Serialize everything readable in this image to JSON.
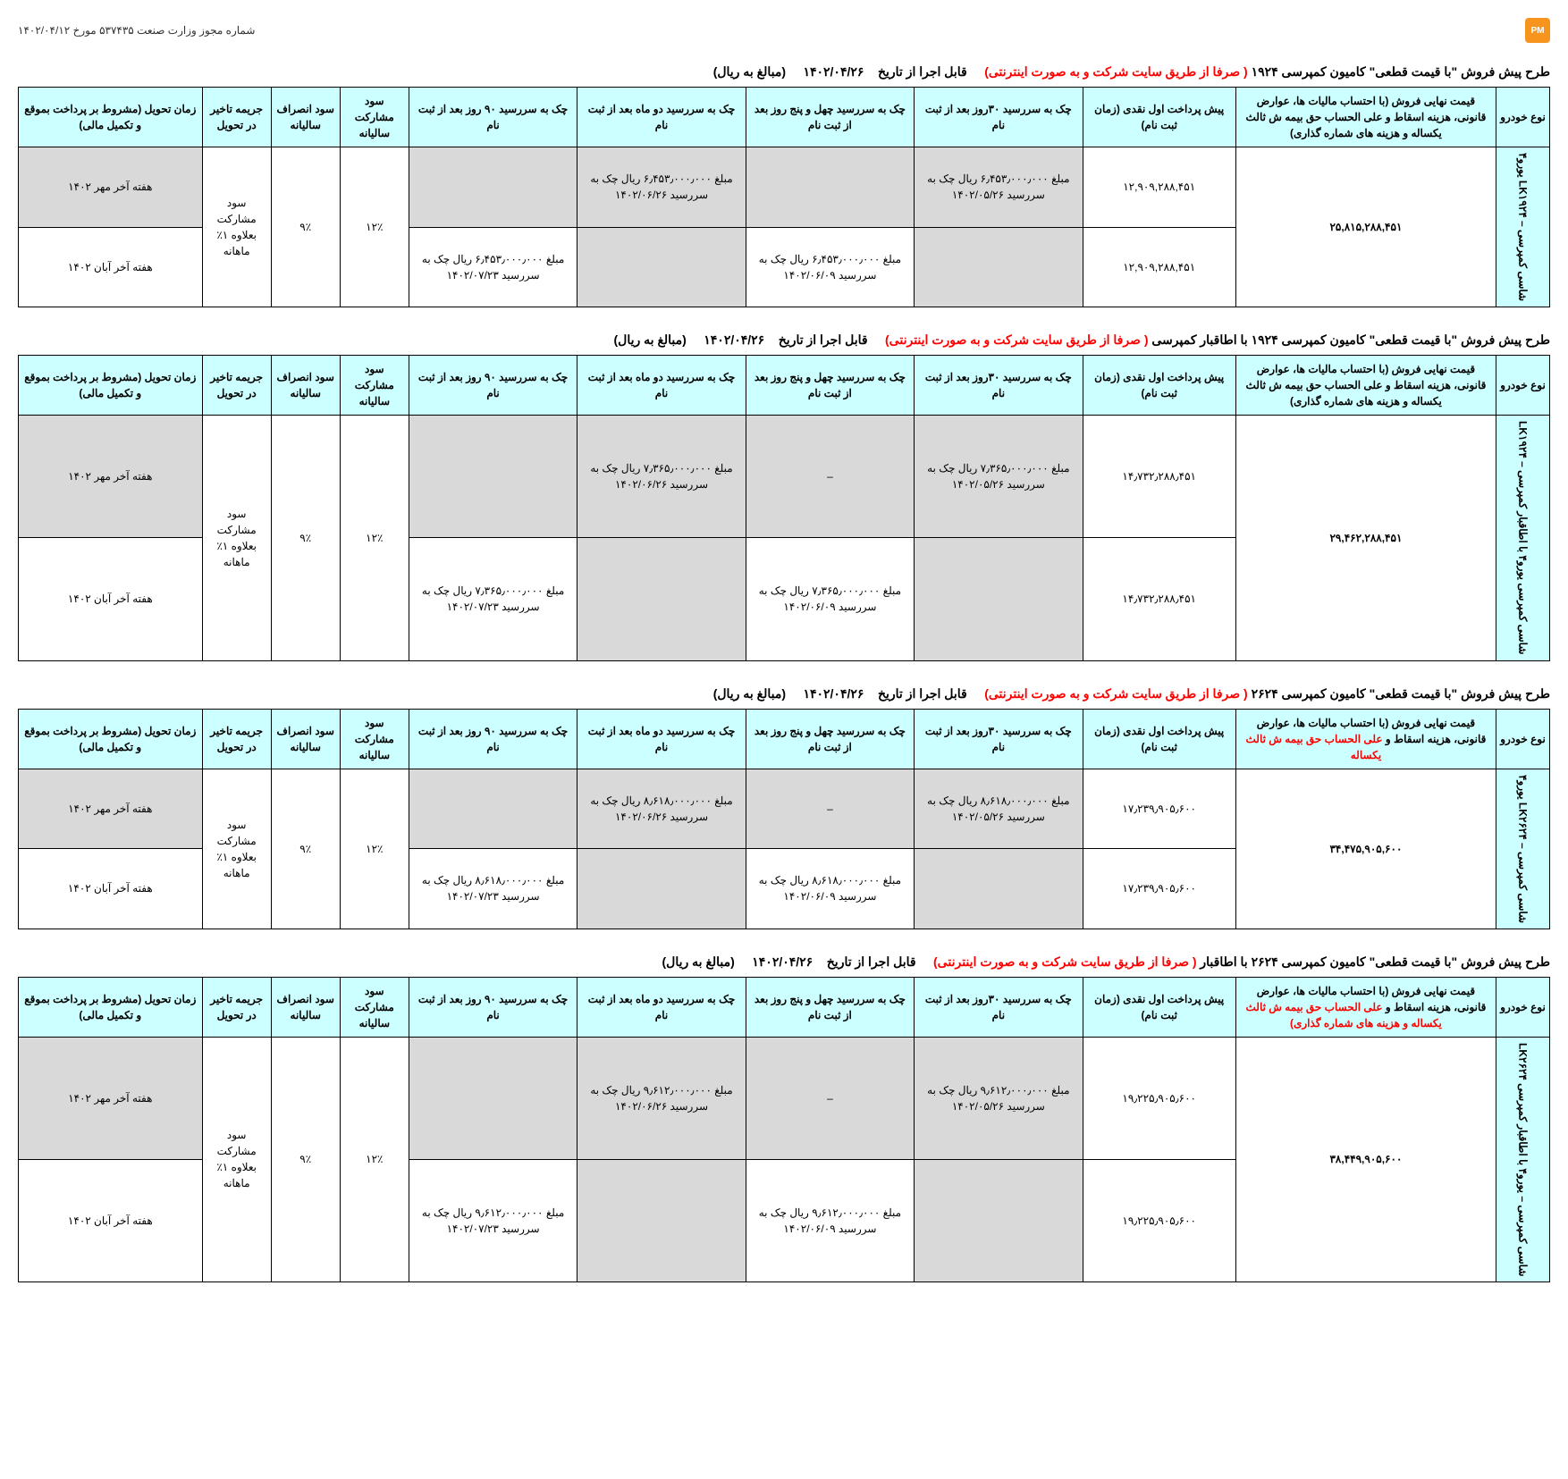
{
  "header": {
    "license": "شماره مجوز وزارت صنعت ۵۳۷۴۳۵ مورخ ۱۴۰۲/۰۴/۱۲",
    "logo": "PM"
  },
  "common": {
    "currency_note": "(مبالغ به ریال)",
    "exec_date_label": "قابل اجرا از تاریخ",
    "exec_date": "۱۴۰۲/۰۴/۲۶",
    "via_site": "( صرفا از طریق سایت شرکت و به صورت اینترنتی)",
    "cols": {
      "vehicle": "نوع خودرو",
      "first_pay": "پیش پرداخت اول نقدی   (زمان ثبت نام)",
      "chk30": "چک به سررسید ۳۰روز بعد از ثبت نام",
      "chk45": "چک به سررسید چهل و پنج روز بعد از ثبت نام",
      "chk60": "چک به سررسید دو ماه بعد از ثبت نام",
      "chk90": "چک به سررسید ۹۰ روز بعد از ثبت نام",
      "annual_part": "سود مشارکت سالیانه",
      "annual_cancel": "سود انصراف سالیانه",
      "delay_penalty": "جریمه تاخیر در تحویل",
      "delivery": "زمان تحویل (مشروط بر پرداخت بموقع و تکمیل مالی)"
    },
    "penalty_text": "سود مشارکت بعلاوه ۱٪ ماهانه",
    "pct12": "۱۲٪",
    "pct9": "۹٪",
    "mehr": "هفته آخر مهر ۱۴۰۲",
    "aban": "هفته آخر آبان ۱۴۰۲",
    "dash": "–"
  },
  "t1": {
    "title_pre": "طرح  پیش فروش \"با قیمت قطعی\"  کامیون کمپرسی ۱۹۲۴",
    "price_label": "قیمت نهایی فروش (با احتساب مالیات ها، عوارض قانونی، هزینه اسقاط و  علی الحساب حق بیمه ش ثالث یکساله و هزینه های شماره گذاری)",
    "vehicle": "شاسی کمپرسی – LK۱۹۲۴ یورو۴",
    "price": "۲۵,۸۱۵,۲۸۸,۴۵۱",
    "first_pay": "۱۲,۹۰۹,۲۸۸,۴۵۱",
    "r1_chk30": "مبلغ ۶٫۴۵۳٫۰۰۰٫۰۰۰ ریال چک به سررسید ۱۴۰۲/۰۵/۲۶",
    "r1_chk60": "مبلغ ۶٫۴۵۳٫۰۰۰٫۰۰۰ ریال چک به سررسید ۱۴۰۲/۰۶/۲۶",
    "r2_chk45": "مبلغ ۶٫۴۵۳٫۰۰۰٫۰۰۰ ریال چک به سررسید ۱۴۰۲/۰۶/۰۹",
    "r2_chk90": "مبلغ ۶٫۴۵۳٫۰۰۰٫۰۰۰ ریال چک به سررسید ۱۴۰۲/۰۷/۲۳"
  },
  "t2": {
    "title_pre": "طرح  پیش فروش \"با قیمت قطعی\"  کامیون کمپرسی ۱۹۲۴ با اطاقبار کمپرسی",
    "price_label": "قیمت نهایی فروش (با احتساب مالیات ها، عوارض قانونی، هزینه اسقاط و  علی الحساب حق بیمه ش ثالث یکساله و هزینه های شماره گذاری)",
    "vehicle": "شاسی کمپرسی یورو۴ با اطاقبار کمپرسی – LK۱۹۲۴",
    "price": "۲۹,۴۶۲,۲۸۸,۴۵۱",
    "first_pay": "۱۴٫۷۳۲٫۲۸۸٫۴۵۱",
    "r1_chk30": "مبلغ ۷٫۳۶۵٫۰۰۰٫۰۰۰ ریال چک به سررسید ۱۴۰۲/۰۵/۲۶",
    "r1_chk60": "مبلغ ۷٫۳۶۵٫۰۰۰٫۰۰۰ ریال چک به سررسید ۱۴۰۲/۰۶/۲۶",
    "r2_chk45": "مبلغ ۷٫۳۶۵٫۰۰۰٫۰۰۰ ریال چک به سررسید ۱۴۰۲/۰۶/۰۹",
    "r2_chk90": "مبلغ ۷٫۳۶۵٫۰۰۰٫۰۰۰ ریال چک به سررسید ۱۴۰۲/۰۷/۲۳"
  },
  "t3": {
    "title_pre": "طرح  پیش فروش \"با قیمت قطعی\"  کامیون کمپرسی ۲۶۲۴",
    "price_label_1": "قیمت نهایی فروش (با احتساب مالیات ها، عوارض قانونی، هزینه اسقاط و",
    "price_label_2": "علی الحساب حق بیمه ش ثالث یکساله",
    "vehicle": "شاسی کمپرسی – LK۲۶۲۴ یورو۴",
    "price": "۳۴,۴۷۵,۹۰۵,۶۰۰",
    "first_pay": "۱۷٫۲۳۹٫۹۰۵٫۶۰۰",
    "r1_chk30": "مبلغ ۸٫۶۱۸٫۰۰۰٫۰۰۰ ریال چک به سررسید ۱۴۰۲/۰۵/۲۶",
    "r1_chk60": "مبلغ ۸٫۶۱۸٫۰۰۰٫۰۰۰ ریال چک به سررسید ۱۴۰۲/۰۶/۲۶",
    "r2_chk45": "مبلغ ۸٫۶۱۸٫۰۰۰٫۰۰۰ ریال چک به سررسید ۱۴۰۲/۰۶/۰۹",
    "r2_chk90": "مبلغ ۸٫۶۱۸٫۰۰۰٫۰۰۰ ریال چک به سررسید ۱۴۰۲/۰۷/۲۳"
  },
  "t4": {
    "title_pre": "طرح  پیش فروش \"با قیمت قطعی\"  کامیون کمپرسی ۲۶۲۴ با اطاقبار",
    "price_label_1": "قیمت نهایی فروش (با احتساب مالیات ها، عوارض قانونی، هزینه اسقاط و",
    "price_label_2": "علی الحساب حق بیمه ش ثالث یکساله و هزینه های شماره گذاری)",
    "vehicle": "شاسی کمپرسی – یورو۴ با اطاقبار کمپرسی LK۲۶۲۴",
    "price": "۳۸,۴۴۹,۹۰۵,۶۰۰",
    "first_pay": "۱۹٫۲۲۵٫۹۰۵٫۶۰۰",
    "r1_chk30": "مبلغ ۹٫۶۱۲٫۰۰۰٫۰۰۰ ریال چک به سررسید ۱۴۰۲/۰۵/۲۶",
    "r1_chk60": "مبلغ ۹٫۶۱۲٫۰۰۰٫۰۰۰ ریال چک به سررسید ۱۴۰۲/۰۶/۲۶",
    "r2_chk45": "مبلغ ۹٫۶۱۲٫۰۰۰٫۰۰۰ ریال چک به سررسید ۱۴۰۲/۰۶/۰۹",
    "r2_chk90": "مبلغ ۹٫۶۱۲٫۰۰۰٫۰۰۰ ریال چک به سررسید ۱۴۰۲/۰۷/۲۳"
  }
}
